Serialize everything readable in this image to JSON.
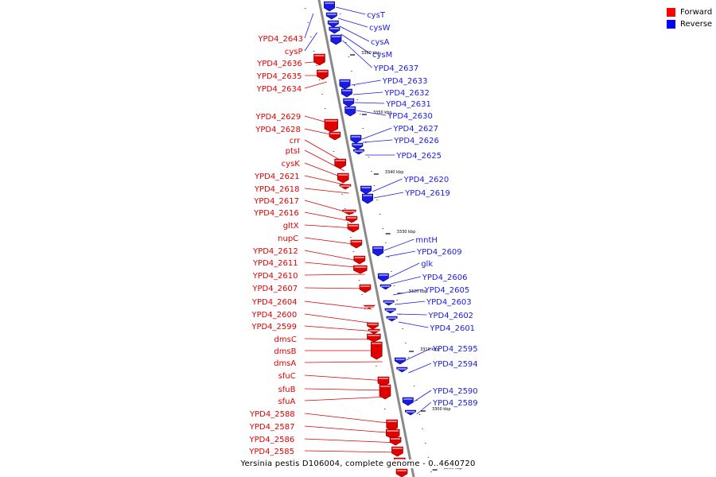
{
  "colors": {
    "forward": "#e00000",
    "reverse": "#1a1ae6",
    "backbone": "#8a8a8a"
  },
  "legend": [
    {
      "label": "Forward",
      "color": "#ff0000"
    },
    {
      "label": "Reverse",
      "color": "#0000ff"
    }
  ],
  "caption": "Yersinia pestis D106004, complete genome - 0..4640720",
  "ticks": [
    "3360 kbp",
    "3350 kbp",
    "3340 kbp",
    "3330 kbp",
    "3320 kbp",
    "3310 kbp",
    "3300 kbp",
    "3290 kbp"
  ],
  "forward_labels": [
    "YPD4_2643",
    "cysP",
    "YPD4_2636",
    "YPD4_2635",
    "YPD4_2634",
    "YPD4_2629",
    "YPD4_2628",
    "crr",
    "ptsI",
    "cysK",
    "YPD4_2621",
    "YPD4_2618",
    "YPD4_2617",
    "YPD4_2616",
    "gltX",
    "nupC",
    "YPD4_2612",
    "YPD4_2611",
    "YPD4_2610",
    "YPD4_2607",
    "YPD4_2604",
    "YPD4_2600",
    "YPD4_2599",
    "dmsC",
    "dmsB",
    "dmsA",
    "sfuC",
    "sfuB",
    "sfuA",
    "YPD4_2588",
    "YPD4_2587",
    "YPD4_2586",
    "YPD4_2585"
  ],
  "reverse_labels": [
    "cysT",
    "cysW",
    "cysA",
    "cysM",
    "YPD4_2637",
    "YPD4_2633",
    "YPD4_2632",
    "YPD4_2631",
    "YPD4_2630",
    "YPD4_2627",
    "YPD4_2626",
    "YPD4_2625",
    "YPD4_2620",
    "YPD4_2619",
    "mntH",
    "YPD4_2609",
    "glk",
    "YPD4_2606",
    "YPD4_2605",
    "YPD4_2603",
    "YPD4_2602",
    "YPD4_2601",
    "YPD4_2595",
    "YPD4_2594",
    "YPD4_2590",
    "YPD4_2589"
  ]
}
